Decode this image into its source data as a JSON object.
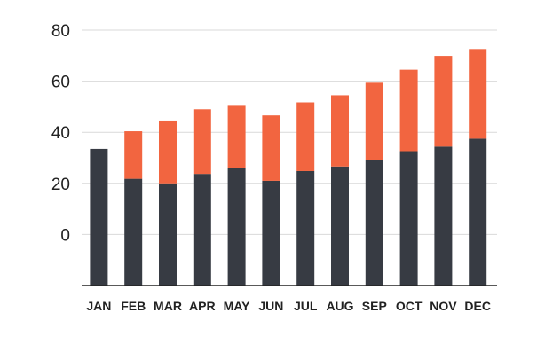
{
  "chart_data": {
    "type": "bar",
    "stacked": true,
    "categories": [
      "JAN",
      "FEB",
      "MAR",
      "APR",
      "MAY",
      "JUN",
      "JUL",
      "AUG",
      "SEP",
      "OCT",
      "NOV",
      "DEC"
    ],
    "y_tick_labels": [
      "0",
      "20",
      "40",
      "60",
      "80"
    ],
    "ylim": [
      -20,
      80
    ],
    "grid": true,
    "legend": "none",
    "series": [
      {
        "color": "#373b43",
        "values": [
          33.5,
          21.8,
          20.0,
          23.7,
          25.9,
          21.0,
          24.8,
          26.6,
          29.3,
          32.6,
          34.4,
          37.5
        ]
      },
      {
        "color": "#f26540",
        "values": [
          0,
          18.6,
          24.6,
          25.3,
          24.8,
          25.6,
          26.9,
          27.9,
          30.1,
          31.9,
          35.5,
          35.1
        ]
      }
    ]
  }
}
